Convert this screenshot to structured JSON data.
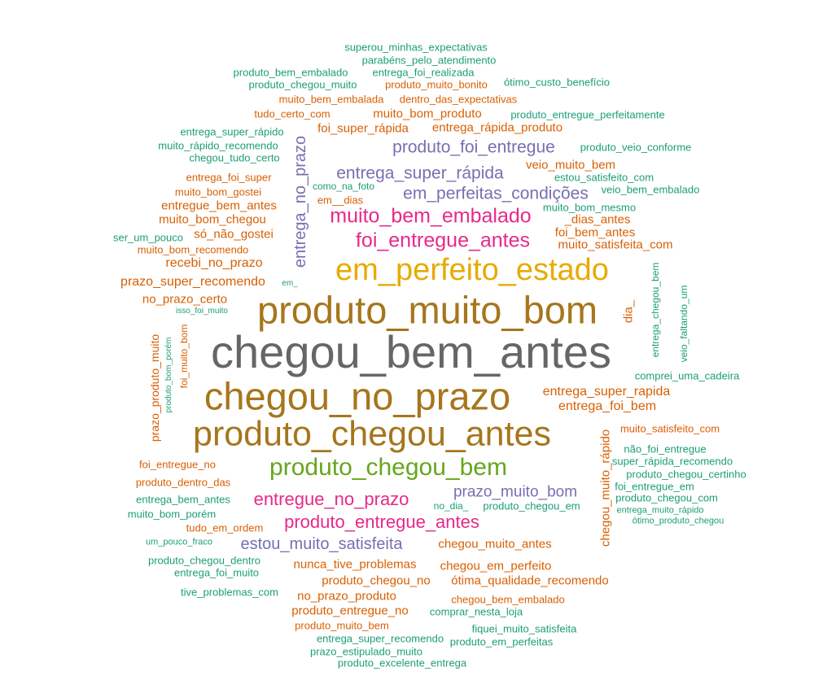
{
  "palette": {
    "green": "#1b9e77",
    "orange": "#d95f02",
    "purple": "#7570b3",
    "pink": "#e7298a",
    "lime": "#66a61e",
    "yellow": "#e6ab02",
    "brown": "#a6761d",
    "gray": "#666666"
  },
  "words": [
    {
      "text": "chegou_bem_antes",
      "color": "gray"
    },
    {
      "text": "produto_muito_bom",
      "color": "brown"
    },
    {
      "text": "chegou_no_prazo",
      "color": "brown"
    },
    {
      "text": "produto_chegou_antes",
      "color": "brown"
    },
    {
      "text": "em_perfeito_estado",
      "color": "yellow"
    },
    {
      "text": "produto_chegou_bem",
      "color": "lime"
    },
    {
      "text": "muito_bem_embalado",
      "color": "pink"
    },
    {
      "text": "foi_entregue_antes",
      "color": "pink"
    },
    {
      "text": "produto_foi_entregue",
      "color": "purple"
    },
    {
      "text": "entrega_super_rápida",
      "color": "purple"
    },
    {
      "text": "em_perfeitas_condições",
      "color": "purple"
    },
    {
      "text": "entregue_no_prazo",
      "color": "pink"
    },
    {
      "text": "produto_entregue_antes",
      "color": "pink"
    },
    {
      "text": "estou_muito_satisfeita",
      "color": "purple"
    },
    {
      "text": "prazo_muito_bom",
      "color": "purple"
    },
    {
      "text": "entrega_no_prazo",
      "color": "purple"
    },
    {
      "text": "superou_minhas_expectativas",
      "color": "green"
    },
    {
      "text": "parabéns_pelo_atendimento",
      "color": "green"
    },
    {
      "text": "produto_bem_embalado",
      "color": "green"
    },
    {
      "text": "entrega_foi_realizada",
      "color": "green"
    },
    {
      "text": "produto_chegou_muito",
      "color": "green"
    },
    {
      "text": "produto_muito_bonito",
      "color": "orange"
    },
    {
      "text": "ótimo_custo_benefício",
      "color": "green"
    },
    {
      "text": "muito_bem_embalada",
      "color": "orange"
    },
    {
      "text": "dentro_das_expectativas",
      "color": "orange"
    },
    {
      "text": "tudo_certo_com",
      "color": "orange"
    },
    {
      "text": "muito_bom_produto",
      "color": "orange"
    },
    {
      "text": "produto_entregue_perfeitamente",
      "color": "green"
    },
    {
      "text": "foi_super_rápida",
      "color": "orange"
    },
    {
      "text": "entrega_rápida_produto",
      "color": "orange"
    },
    {
      "text": "entrega_super_rápido",
      "color": "green"
    },
    {
      "text": "muito_rápido_recomendo",
      "color": "green"
    },
    {
      "text": "chegou_tudo_certo",
      "color": "green"
    },
    {
      "text": "produto_veio_conforme",
      "color": "green"
    },
    {
      "text": "entrega_foi_super",
      "color": "orange"
    },
    {
      "text": "veio_muito_bem",
      "color": "orange"
    },
    {
      "text": "estou_satisfeito_com",
      "color": "green"
    },
    {
      "text": "muito_bom_gostei",
      "color": "orange"
    },
    {
      "text": "como_na_foto",
      "color": "green"
    },
    {
      "text": "veio_bem_embalado",
      "color": "green"
    },
    {
      "text": "entregue_bem_antes",
      "color": "orange"
    },
    {
      "text": "em__dias",
      "color": "orange"
    },
    {
      "text": "muito_bom_mesmo",
      "color": "green"
    },
    {
      "text": "muito_bom_chegou",
      "color": "orange"
    },
    {
      "text": "_dias_antes",
      "color": "orange"
    },
    {
      "text": "ser_um_pouco",
      "color": "green"
    },
    {
      "text": "só_não_gostei",
      "color": "orange"
    },
    {
      "text": "foi_bem_antes",
      "color": "orange"
    },
    {
      "text": "muito_satisfeita_com",
      "color": "orange"
    },
    {
      "text": "muito_bom_recomendo",
      "color": "orange"
    },
    {
      "text": "recebi_no_prazo",
      "color": "orange"
    },
    {
      "text": "prazo_super_recomendo",
      "color": "orange"
    },
    {
      "text": "em_",
      "color": "green"
    },
    {
      "text": "no_prazo_certo",
      "color": "orange"
    },
    {
      "text": "isso_foi_muito",
      "color": "green"
    },
    {
      "text": "dia_",
      "color": "orange"
    },
    {
      "text": "entrega_chegou_bem",
      "color": "green"
    },
    {
      "text": "veio_faltando_um",
      "color": "green"
    },
    {
      "text": "prazo_produto_muito",
      "color": "orange"
    },
    {
      "text": "produto_bom_porém",
      "color": "green"
    },
    {
      "text": "foi_muito_bom",
      "color": "orange"
    },
    {
      "text": "comprei_uma_cadeira",
      "color": "green"
    },
    {
      "text": "entrega_super_rapida",
      "color": "orange"
    },
    {
      "text": "entrega_foi_bem",
      "color": "orange"
    },
    {
      "text": "muito_satisfeito_com",
      "color": "orange"
    },
    {
      "text": "chegou_muito_rápido",
      "color": "orange"
    },
    {
      "text": "não_foi_entregue",
      "color": "green"
    },
    {
      "text": "super_rápida_recomendo",
      "color": "green"
    },
    {
      "text": "foi_entregue_no",
      "color": "orange"
    },
    {
      "text": "produto_chegou_certinho",
      "color": "green"
    },
    {
      "text": "produto_dentro_das",
      "color": "orange"
    },
    {
      "text": "foi_entregue_em",
      "color": "green"
    },
    {
      "text": "entrega_bem_antes",
      "color": "green"
    },
    {
      "text": "produto_chegou_com",
      "color": "green"
    },
    {
      "text": "no_dia_",
      "color": "green"
    },
    {
      "text": "produto_chegou_em",
      "color": "green"
    },
    {
      "text": "muito_bom_porém",
      "color": "green"
    },
    {
      "text": "entrega_muito_rápido",
      "color": "green"
    },
    {
      "text": "tudo_em_ordem",
      "color": "orange"
    },
    {
      "text": "ótimo_produto_chegou",
      "color": "green"
    },
    {
      "text": "um_pouco_fraco",
      "color": "green"
    },
    {
      "text": "chegou_muito_antes",
      "color": "orange"
    },
    {
      "text": "produto_chegou_dentro",
      "color": "green"
    },
    {
      "text": "nunca_tive_problemas",
      "color": "orange"
    },
    {
      "text": "chegou_em_perfeito",
      "color": "orange"
    },
    {
      "text": "entrega_foi_muito",
      "color": "green"
    },
    {
      "text": "produto_chegou_no",
      "color": "orange"
    },
    {
      "text": "ótima_qualidade_recomendo",
      "color": "orange"
    },
    {
      "text": "tive_problemas_com",
      "color": "green"
    },
    {
      "text": "no_prazo_produto",
      "color": "orange"
    },
    {
      "text": "chegou_bem_embalado",
      "color": "orange"
    },
    {
      "text": "produto_entregue_no",
      "color": "orange"
    },
    {
      "text": "comprar_nesta_loja",
      "color": "green"
    },
    {
      "text": "produto_muito_bem",
      "color": "orange"
    },
    {
      "text": "fiquei_muito_satisfeita",
      "color": "green"
    },
    {
      "text": "entrega_super_recomendo",
      "color": "green"
    },
    {
      "text": "produto_em_perfeitas",
      "color": "green"
    },
    {
      "text": "prazo_estipulado_muito",
      "color": "green"
    },
    {
      "text": "produto_excelente_entrega",
      "color": "green"
    }
  ]
}
